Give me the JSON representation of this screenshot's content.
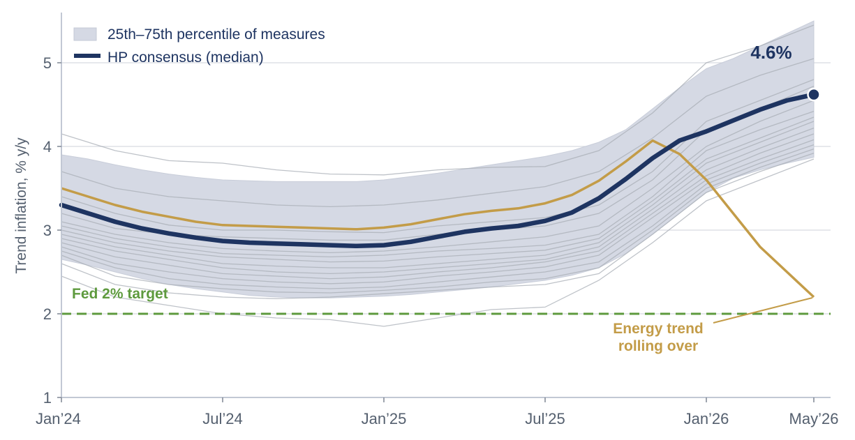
{
  "chart_data": {
    "type": "line",
    "ylabel": "Trend inflation, % y/y",
    "xlabel": "",
    "ylim": [
      1,
      5.6
    ],
    "yticks": [
      1,
      2,
      3,
      4,
      5
    ],
    "xlim": [
      0,
      28
    ],
    "xticks": [
      {
        "m": 0,
        "label": "Jan’24"
      },
      {
        "m": 6,
        "label": "Jul’24"
      },
      {
        "m": 12,
        "label": "Jan’25"
      },
      {
        "m": 18,
        "label": "Jul’25"
      },
      {
        "m": 24,
        "label": "Jan’26"
      },
      {
        "m": 28,
        "label": "May’26"
      }
    ],
    "grid": true,
    "legend_position": "top-left",
    "band": {
      "name": "25th–75th percentile of measures",
      "color": "#d5d9e4",
      "x": [
        0,
        1,
        2,
        3,
        4,
        5,
        6,
        7,
        8,
        9,
        10,
        11,
        12,
        13,
        14,
        15,
        16,
        17,
        18,
        19,
        20,
        21,
        22,
        23,
        24,
        25,
        26,
        27,
        28
      ],
      "upper": [
        3.9,
        3.85,
        3.78,
        3.72,
        3.67,
        3.63,
        3.6,
        3.59,
        3.58,
        3.58,
        3.58,
        3.58,
        3.6,
        3.64,
        3.68,
        3.73,
        3.78,
        3.83,
        3.88,
        3.95,
        4.05,
        4.2,
        4.45,
        4.7,
        4.93,
        5.05,
        5.2,
        5.35,
        5.5
      ],
      "lower": [
        2.65,
        2.58,
        2.5,
        2.42,
        2.35,
        2.3,
        2.26,
        2.22,
        2.2,
        2.19,
        2.19,
        2.2,
        2.21,
        2.23,
        2.26,
        2.29,
        2.32,
        2.36,
        2.4,
        2.46,
        2.55,
        2.72,
        2.95,
        3.2,
        3.45,
        3.62,
        3.72,
        3.8,
        3.87
      ]
    },
    "measures": {
      "color": "#a8adb5",
      "x": [
        0,
        2,
        4,
        6,
        8,
        10,
        12,
        14,
        16,
        18,
        20,
        22,
        24,
        26,
        28
      ],
      "lines": [
        [
          4.15,
          3.95,
          3.83,
          3.8,
          3.72,
          3.67,
          3.66,
          3.72,
          3.75,
          3.76,
          3.95,
          4.4,
          5.0,
          5.2,
          5.45
        ],
        [
          3.7,
          3.5,
          3.4,
          3.35,
          3.3,
          3.28,
          3.3,
          3.36,
          3.44,
          3.52,
          3.7,
          4.1,
          4.6,
          4.85,
          5.05
        ],
        [
          3.4,
          3.2,
          3.06,
          3.0,
          3.0,
          2.98,
          2.97,
          3.05,
          3.1,
          3.15,
          3.3,
          3.7,
          4.3,
          4.55,
          4.8
        ],
        [
          3.2,
          3.02,
          2.95,
          2.92,
          2.9,
          2.88,
          2.88,
          2.95,
          3.0,
          3.05,
          3.2,
          3.6,
          4.2,
          4.45,
          4.72
        ],
        [
          3.1,
          2.95,
          2.85,
          2.78,
          2.75,
          2.73,
          2.75,
          2.8,
          2.86,
          2.92,
          3.05,
          3.5,
          4.0,
          4.3,
          4.55
        ],
        [
          3.05,
          2.9,
          2.8,
          2.72,
          2.7,
          2.68,
          2.7,
          2.75,
          2.78,
          2.82,
          2.95,
          3.4,
          3.95,
          4.2,
          4.42
        ],
        [
          3.0,
          2.85,
          2.75,
          2.68,
          2.65,
          2.62,
          2.63,
          2.68,
          2.72,
          2.76,
          2.9,
          3.35,
          3.85,
          4.1,
          4.35
        ],
        [
          2.95,
          2.8,
          2.7,
          2.6,
          2.57,
          2.55,
          2.55,
          2.6,
          2.65,
          2.7,
          2.85,
          3.3,
          3.8,
          4.05,
          4.3
        ],
        [
          2.9,
          2.75,
          2.65,
          2.55,
          2.5,
          2.48,
          2.5,
          2.55,
          2.6,
          2.65,
          2.8,
          3.25,
          3.72,
          3.98,
          4.22
        ],
        [
          2.85,
          2.68,
          2.58,
          2.48,
          2.45,
          2.42,
          2.44,
          2.5,
          2.55,
          2.62,
          2.75,
          3.2,
          3.65,
          3.92,
          4.15
        ],
        [
          2.8,
          2.6,
          2.5,
          2.42,
          2.38,
          2.36,
          2.38,
          2.45,
          2.5,
          2.56,
          2.7,
          3.15,
          3.6,
          3.85,
          4.08
        ],
        [
          2.75,
          2.55,
          2.42,
          2.35,
          2.32,
          2.3,
          2.32,
          2.38,
          2.44,
          2.5,
          2.62,
          3.05,
          3.55,
          3.8,
          4.02
        ],
        [
          2.7,
          2.45,
          2.35,
          2.3,
          2.26,
          2.25,
          2.28,
          2.32,
          2.38,
          2.42,
          2.55,
          3.0,
          3.5,
          3.75,
          3.97
        ],
        [
          2.6,
          2.35,
          2.25,
          2.2,
          2.18,
          2.2,
          2.24,
          2.28,
          2.32,
          2.35,
          2.48,
          2.95,
          3.45,
          3.7,
          3.92
        ],
        [
          2.45,
          2.2,
          2.1,
          2.0,
          1.95,
          1.93,
          1.85,
          1.95,
          2.05,
          2.08,
          2.4,
          2.85,
          3.35,
          3.6,
          3.85
        ]
      ]
    },
    "series": [
      {
        "name": "HP consensus (median)",
        "color": "#1e3461",
        "x": [
          0,
          1,
          2,
          3,
          4,
          5,
          6,
          7,
          8,
          9,
          10,
          11,
          12,
          13,
          14,
          15,
          16,
          17,
          18,
          19,
          20,
          21,
          22,
          23,
          24,
          25,
          26,
          27,
          28
        ],
        "values": [
          3.3,
          3.2,
          3.1,
          3.02,
          2.96,
          2.91,
          2.87,
          2.85,
          2.84,
          2.83,
          2.82,
          2.81,
          2.82,
          2.86,
          2.92,
          2.98,
          3.02,
          3.05,
          3.11,
          3.21,
          3.38,
          3.61,
          3.86,
          4.07,
          4.18,
          4.31,
          4.44,
          4.55,
          4.62
        ]
      },
      {
        "name": "Energy trend",
        "color": "#c39c48",
        "x": [
          0,
          1,
          2,
          3,
          4,
          5,
          6,
          7,
          8,
          9,
          10,
          11,
          12,
          13,
          14,
          15,
          16,
          17,
          18,
          19,
          20,
          21,
          22,
          23,
          24,
          25,
          26,
          27,
          28
        ],
        "values": [
          3.5,
          3.4,
          3.3,
          3.22,
          3.16,
          3.1,
          3.06,
          3.05,
          3.04,
          3.03,
          3.02,
          3.01,
          3.03,
          3.07,
          3.13,
          3.19,
          3.23,
          3.26,
          3.32,
          3.42,
          3.59,
          3.82,
          4.07,
          3.91,
          3.6,
          3.2,
          2.8,
          2.5,
          2.2
        ]
      }
    ],
    "reference_line": {
      "label": "Fed 2% target",
      "value": 2,
      "color": "#5e9a3e"
    },
    "annotations": {
      "end_value_label": "4.6%",
      "energy_line1": "Energy trend",
      "energy_line2": "rolling over"
    }
  }
}
